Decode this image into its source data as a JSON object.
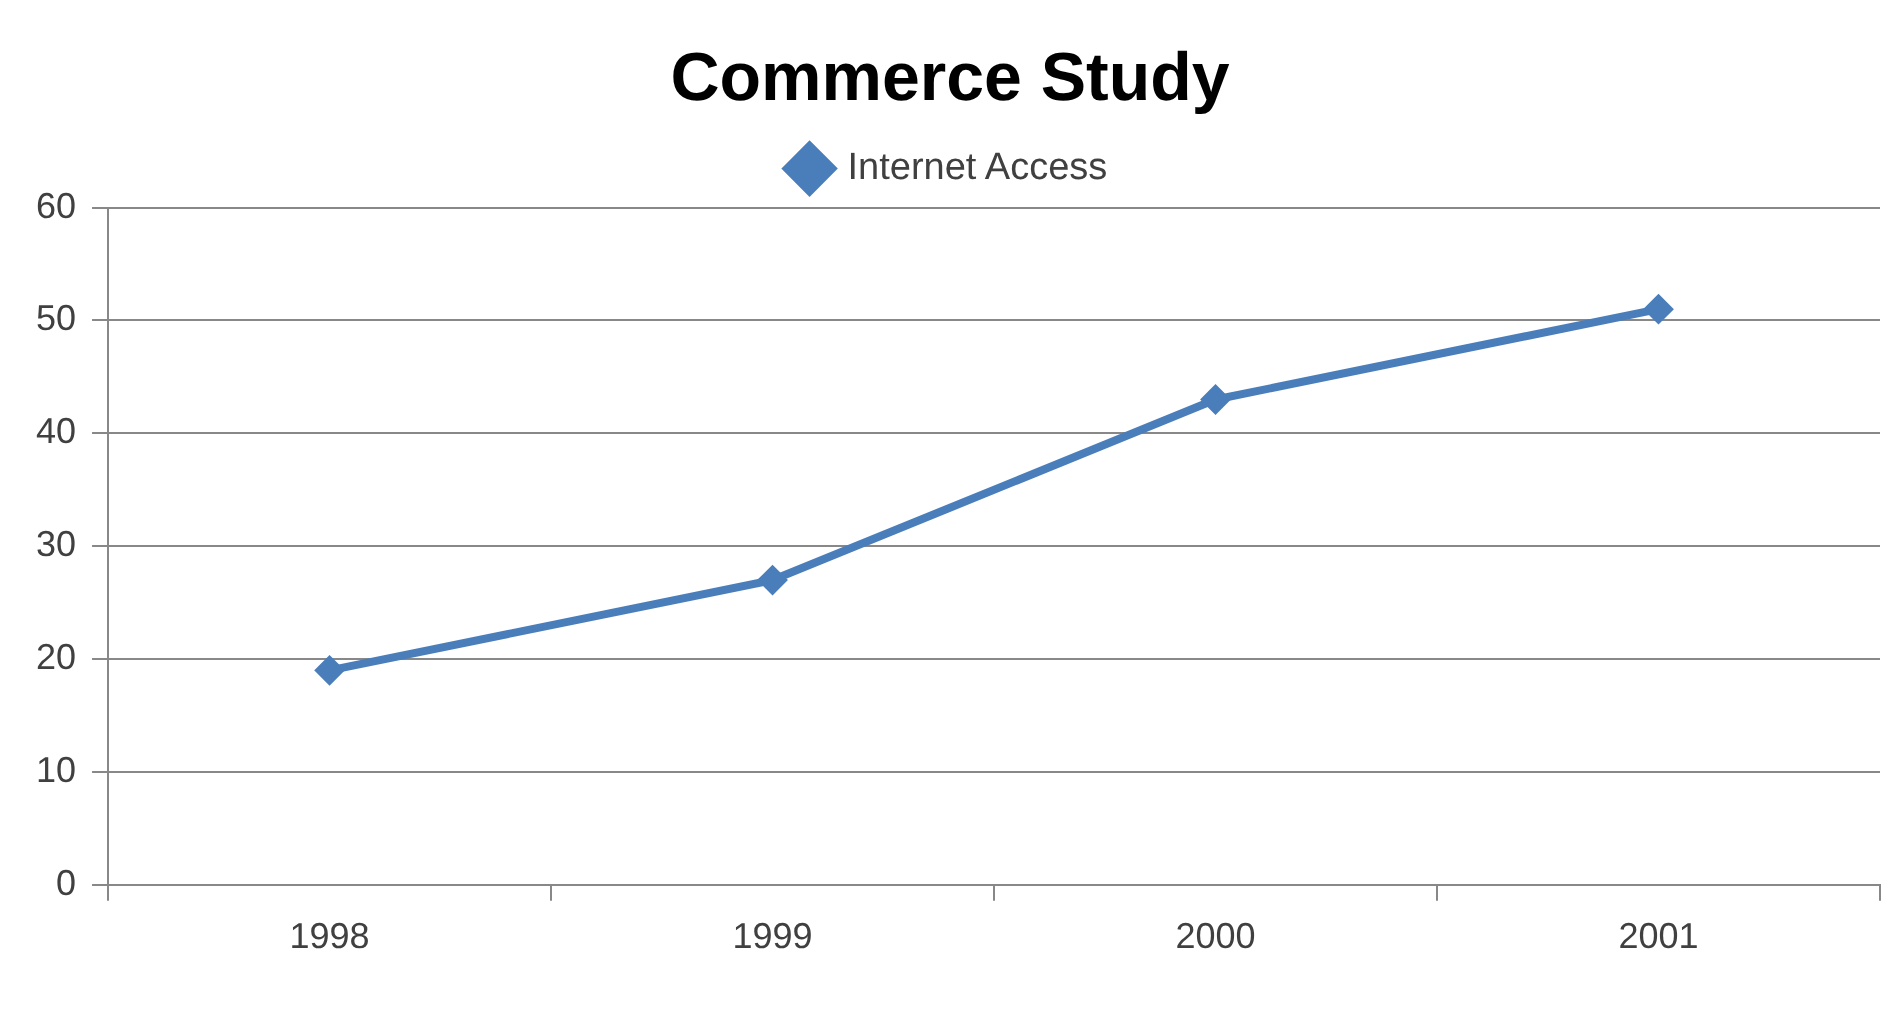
{
  "chart_data": {
    "type": "line",
    "title": "Commerce Study",
    "categories": [
      "1998",
      "1999",
      "2000",
      "2001"
    ],
    "series": [
      {
        "name": "Internet Access",
        "color": "#4a7ebb",
        "values": [
          19,
          27,
          43,
          51
        ]
      }
    ],
    "ylim": [
      0,
      60
    ],
    "yticks": [
      0,
      10,
      20,
      30,
      40,
      50,
      60
    ],
    "grid": "y",
    "legend": "top",
    "marker": "diamond",
    "line_style": "solid"
  }
}
